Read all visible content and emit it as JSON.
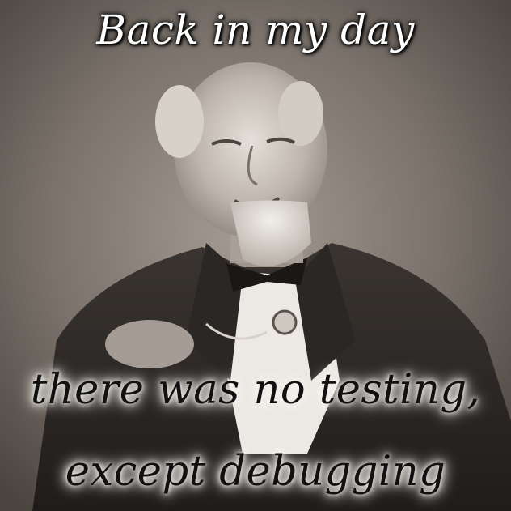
{
  "meme": {
    "caption_top": "Back in my day",
    "caption_bottom_line1": "there was no testing,",
    "caption_bottom_line2": "except debugging"
  },
  "palette": {
    "background": "#4d4741",
    "caption_top_fill": "#ffffff",
    "caption_bottom_fill": "#111111",
    "caption_bottom_glow": "#f4f0ea"
  }
}
